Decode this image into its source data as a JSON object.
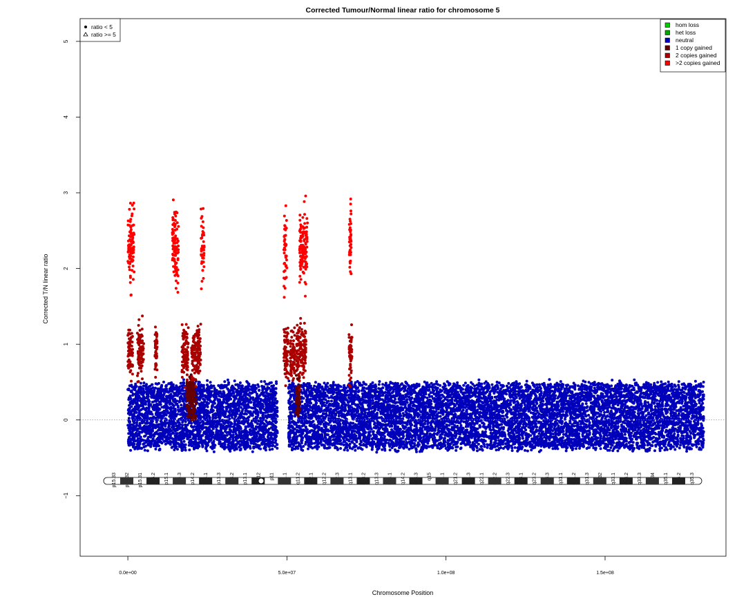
{
  "chart_data": {
    "type": "scatter",
    "title": "Corrected Tumour/Normal linear ratio for chromosome  5",
    "xlabel": "Chromosome Position",
    "ylabel": "Corrected T/N linear ratio",
    "xlim": [
      -15000000,
      188000000.0
    ],
    "ylim": [
      -1.8,
      5.3
    ],
    "x_ticks": [
      {
        "value": 0,
        "label": "0.0e+00"
      },
      {
        "value": 50000000,
        "label": "5.0e+07"
      },
      {
        "value": 100000000,
        "label": "1.0e+08"
      },
      {
        "value": 150000000,
        "label": "1.5e+08"
      }
    ],
    "y_ticks": [
      {
        "value": -1,
        "label": "−1"
      },
      {
        "value": 0,
        "label": "0"
      },
      {
        "value": 1,
        "label": "1"
      },
      {
        "value": 2,
        "label": "2"
      },
      {
        "value": 3,
        "label": "3"
      },
      {
        "value": 4,
        "label": "4"
      },
      {
        "value": 5,
        "label": "5"
      }
    ],
    "reference_line": {
      "y": 0,
      "style": "dotted"
    },
    "legend_shape": {
      "placement": "top-left",
      "items": [
        {
          "symbol": "filled-circle",
          "label": "ratio < 5"
        },
        {
          "symbol": "open-triangle",
          "label": "ratio >= 5"
        }
      ]
    },
    "legend_status": {
      "placement": "top-right",
      "items": [
        {
          "label": "hom loss",
          "color": "#00cc00"
        },
        {
          "label": "het loss",
          "color": "#00aa00"
        },
        {
          "label": "neutral",
          "color": "#0000bb"
        },
        {
          "label": "1 copy gained",
          "color": "#660000"
        },
        {
          "label": "2 copies gained",
          "color": "#aa0000"
        },
        {
          "label": ">2 copies gained",
          "color": "#ff0000"
        }
      ]
    },
    "series": [
      {
        "name": "neutral",
        "color": "#0000bb",
        "regions": [
          [
            0,
            47000000
          ],
          [
            50500000,
            181000000
          ]
        ],
        "mean": 0.05,
        "spread": 0.45
      },
      {
        "name": "1 copy gained",
        "color": "#660000",
        "regions": [
          [
            18500000,
            21500000
          ],
          [
            52800000,
            54200000
          ]
        ],
        "mean": 0.3,
        "spread": 0.8
      },
      {
        "name": "2 copies gained",
        "color": "#aa0000",
        "regions": [
          [
            0,
            1500000
          ],
          [
            3000000,
            5000000
          ],
          [
            8500000,
            9200000
          ],
          [
            17000000,
            19000000
          ],
          [
            20000000,
            23000000
          ],
          [
            49000000,
            50500000
          ],
          [
            51000000,
            52600000
          ],
          [
            53000000,
            56000000
          ],
          [
            69500000,
            70500000
          ]
        ],
        "mean": 0.9,
        "spread": 1.0
      },
      {
        "name": ">2 copies gained",
        "color": "#ff0000",
        "regions": [
          [
            0,
            2000000
          ],
          [
            14000000,
            16000000
          ],
          [
            23000000,
            24000000
          ],
          [
            49000000,
            50000000
          ],
          [
            54000000,
            56500000
          ],
          [
            69600000,
            70200000
          ]
        ],
        "mean": 2.3,
        "spread": 1.4
      }
    ],
    "cytoband_labels": [
      "p15.33",
      "p15.32",
      "p15.31",
      "p15.2",
      "p15.1",
      "p14.3",
      "p14.2",
      "p14.1",
      "p13.3",
      "p13.2",
      "p13.1",
      "p12",
      "p11",
      "q11.1",
      "q11.2",
      "q12.1",
      "q12.2",
      "q12.3",
      "q13.1",
      "q13.2",
      "q13.3",
      "q14.1",
      "q14.2",
      "q14.3",
      "q15",
      "q21.1",
      "q21.2",
      "q21.3",
      "q22.1",
      "q22.2",
      "q22.3",
      "q23.1",
      "q23.2",
      "q23.3",
      "q31.1",
      "q31.2",
      "q31.3",
      "q32",
      "q33.1",
      "q33.2",
      "q33.3",
      "q34",
      "q35.1",
      "q35.2",
      "q35.3"
    ]
  }
}
